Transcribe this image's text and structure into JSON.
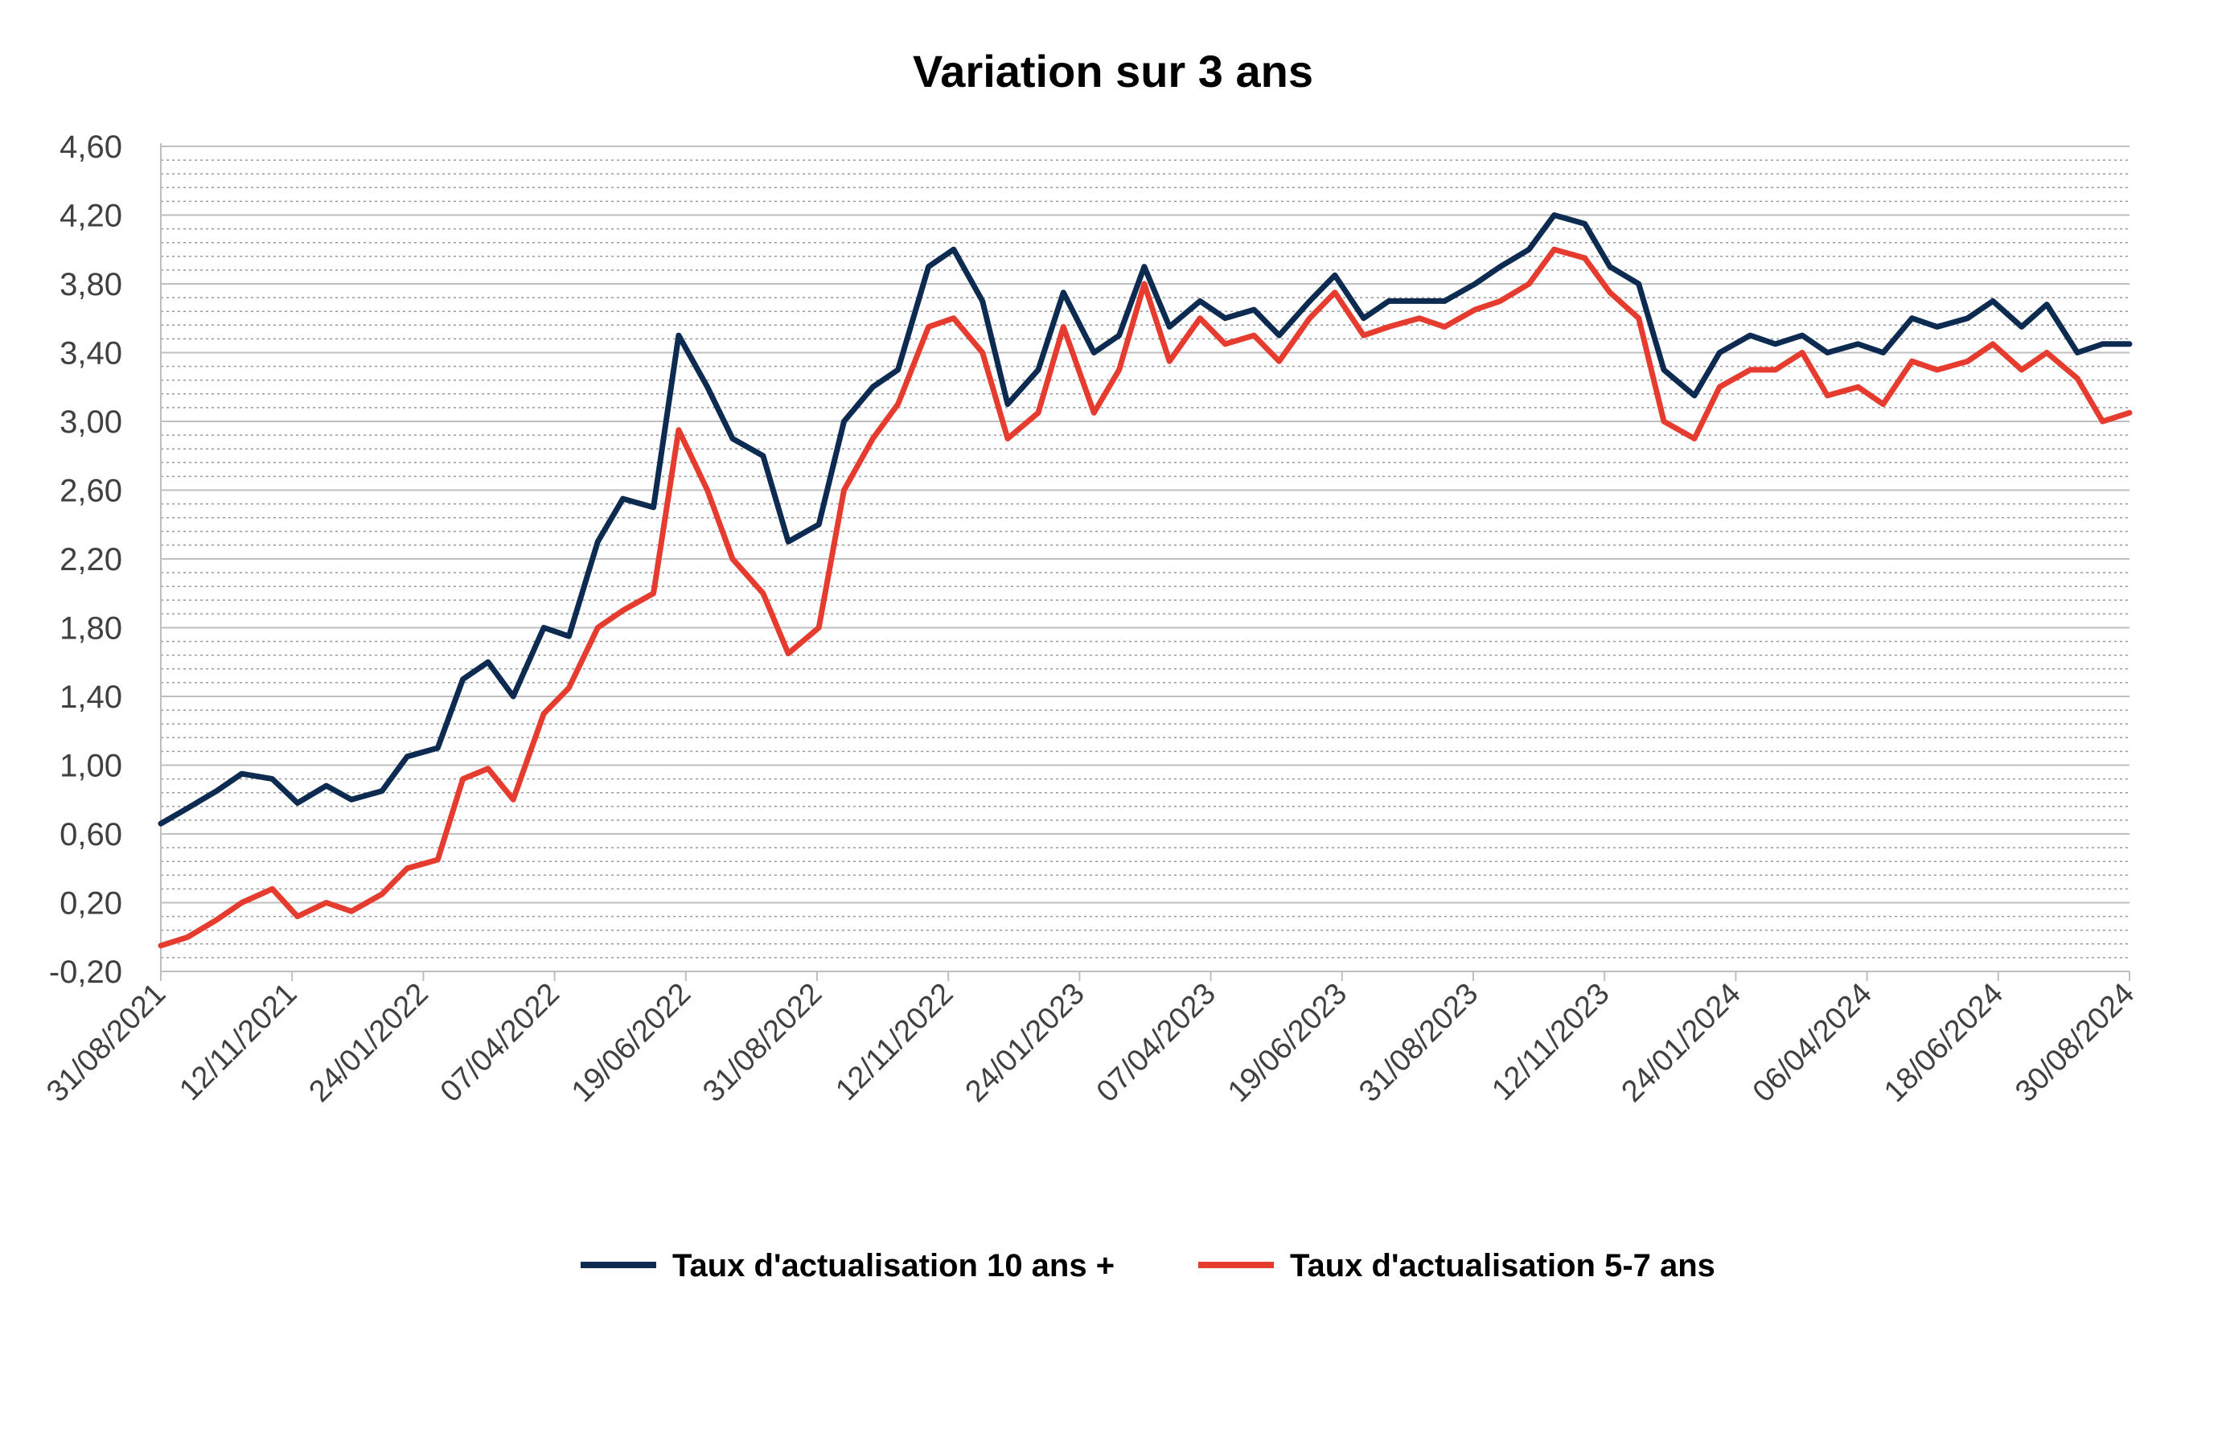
{
  "chart_data": {
    "type": "line",
    "title": "Variation sur 3 ans",
    "xlabel": "",
    "ylabel": "",
    "ylim": [
      -0.2,
      4.6
    ],
    "y_ticks": [
      "-0,20",
      "0,20",
      "0,60",
      "1,00",
      "1,40",
      "1,80",
      "2,20",
      "2,60",
      "3,00",
      "3,40",
      "3,80",
      "4,20",
      "4,60"
    ],
    "x_ticks": [
      "31/08/2021",
      "12/11/2021",
      "24/01/2022",
      "07/04/2022",
      "19/06/2022",
      "31/08/2022",
      "12/11/2022",
      "24/01/2023",
      "07/04/2023",
      "19/06/2023",
      "31/08/2023",
      "12/11/2023",
      "24/01/2024",
      "06/04/2024",
      "18/06/2024",
      "30/08/2024"
    ],
    "grid": true,
    "legend_position": "bottom",
    "series": [
      {
        "name": "Taux d'actualisation 10 ans +",
        "color": "#0d2b50",
        "x": [
          "31/08/2021",
          "15/09/2021",
          "01/10/2021",
          "15/10/2021",
          "01/11/2021",
          "15/11/2021",
          "01/12/2021",
          "15/12/2021",
          "01/01/2022",
          "15/01/2022",
          "01/02/2022",
          "15/02/2022",
          "01/03/2022",
          "15/03/2022",
          "01/04/2022",
          "15/04/2022",
          "01/05/2022",
          "15/05/2022",
          "01/06/2022",
          "15/06/2022",
          "01/07/2022",
          "15/07/2022",
          "01/08/2022",
          "15/08/2022",
          "01/09/2022",
          "15/09/2022",
          "01/10/2022",
          "15/10/2022",
          "01/11/2022",
          "15/11/2022",
          "01/12/2022",
          "15/12/2022",
          "01/01/2023",
          "15/01/2023",
          "01/02/2023",
          "15/02/2023",
          "01/03/2023",
          "15/03/2023",
          "01/04/2023",
          "15/04/2023",
          "01/05/2023",
          "15/05/2023",
          "01/06/2023",
          "15/06/2023",
          "01/07/2023",
          "15/07/2023",
          "01/08/2023",
          "15/08/2023",
          "01/09/2023",
          "15/09/2023",
          "01/10/2023",
          "15/10/2023",
          "01/11/2023",
          "15/11/2023",
          "01/12/2023",
          "15/12/2023",
          "01/01/2024",
          "15/01/2024",
          "01/02/2024",
          "15/02/2024",
          "01/03/2024",
          "15/03/2024",
          "01/04/2024",
          "15/04/2024",
          "01/05/2024",
          "15/05/2024",
          "01/06/2024",
          "15/06/2024",
          "01/07/2024",
          "15/07/2024",
          "01/08/2024",
          "15/08/2024",
          "30/08/2024"
        ],
        "values": [
          0.66,
          0.75,
          0.85,
          0.95,
          0.92,
          0.78,
          0.88,
          0.8,
          0.85,
          1.05,
          1.1,
          1.5,
          1.6,
          1.4,
          1.8,
          1.75,
          2.3,
          2.55,
          2.5,
          3.5,
          3.2,
          2.9,
          2.8,
          2.3,
          2.4,
          3.0,
          3.2,
          3.3,
          3.9,
          4.0,
          3.7,
          3.1,
          3.3,
          3.75,
          3.4,
          3.5,
          3.9,
          3.55,
          3.7,
          3.6,
          3.65,
          3.5,
          3.7,
          3.85,
          3.6,
          3.7,
          3.7,
          3.7,
          3.8,
          3.9,
          4.0,
          4.2,
          4.15,
          3.9,
          3.8,
          3.3,
          3.15,
          3.4,
          3.5,
          3.45,
          3.5,
          3.4,
          3.45,
          3.4,
          3.6,
          3.55,
          3.6,
          3.7,
          3.55,
          3.68,
          3.4,
          3.45,
          3.45
        ]
      },
      {
        "name": "Taux d'actualisation 5-7 ans",
        "color": "#e63c2f",
        "x": [
          "31/08/2021",
          "15/09/2021",
          "01/10/2021",
          "15/10/2021",
          "01/11/2021",
          "15/11/2021",
          "01/12/2021",
          "15/12/2021",
          "01/01/2022",
          "15/01/2022",
          "01/02/2022",
          "15/02/2022",
          "01/03/2022",
          "15/03/2022",
          "01/04/2022",
          "15/04/2022",
          "01/05/2022",
          "15/05/2022",
          "01/06/2022",
          "15/06/2022",
          "01/07/2022",
          "15/07/2022",
          "01/08/2022",
          "15/08/2022",
          "01/09/2022",
          "15/09/2022",
          "01/10/2022",
          "15/10/2022",
          "01/11/2022",
          "15/11/2022",
          "01/12/2022",
          "15/12/2022",
          "01/01/2023",
          "15/01/2023",
          "01/02/2023",
          "15/02/2023",
          "01/03/2023",
          "15/03/2023",
          "01/04/2023",
          "15/04/2023",
          "01/05/2023",
          "15/05/2023",
          "01/06/2023",
          "15/06/2023",
          "01/07/2023",
          "15/07/2023",
          "01/08/2023",
          "15/08/2023",
          "01/09/2023",
          "15/09/2023",
          "01/10/2023",
          "15/10/2023",
          "01/11/2023",
          "15/11/2023",
          "01/12/2023",
          "15/12/2023",
          "01/01/2024",
          "15/01/2024",
          "01/02/2024",
          "15/02/2024",
          "01/03/2024",
          "15/03/2024",
          "01/04/2024",
          "15/04/2024",
          "01/05/2024",
          "15/05/2024",
          "01/06/2024",
          "15/06/2024",
          "01/07/2024",
          "15/07/2024",
          "01/08/2024",
          "15/08/2024",
          "30/08/2024"
        ],
        "values": [
          -0.05,
          0.0,
          0.1,
          0.2,
          0.28,
          0.12,
          0.2,
          0.15,
          0.25,
          0.4,
          0.45,
          0.92,
          0.98,
          0.8,
          1.3,
          1.45,
          1.8,
          1.9,
          2.0,
          2.95,
          2.6,
          2.2,
          2.0,
          1.65,
          1.8,
          2.6,
          2.9,
          3.1,
          3.55,
          3.6,
          3.4,
          2.9,
          3.05,
          3.55,
          3.05,
          3.3,
          3.8,
          3.35,
          3.6,
          3.45,
          3.5,
          3.35,
          3.6,
          3.75,
          3.5,
          3.55,
          3.6,
          3.55,
          3.65,
          3.7,
          3.8,
          4.0,
          3.95,
          3.75,
          3.6,
          3.0,
          2.9,
          3.2,
          3.3,
          3.3,
          3.4,
          3.15,
          3.2,
          3.1,
          3.35,
          3.3,
          3.35,
          3.45,
          3.3,
          3.4,
          3.25,
          3.0,
          3.05
        ]
      }
    ]
  }
}
